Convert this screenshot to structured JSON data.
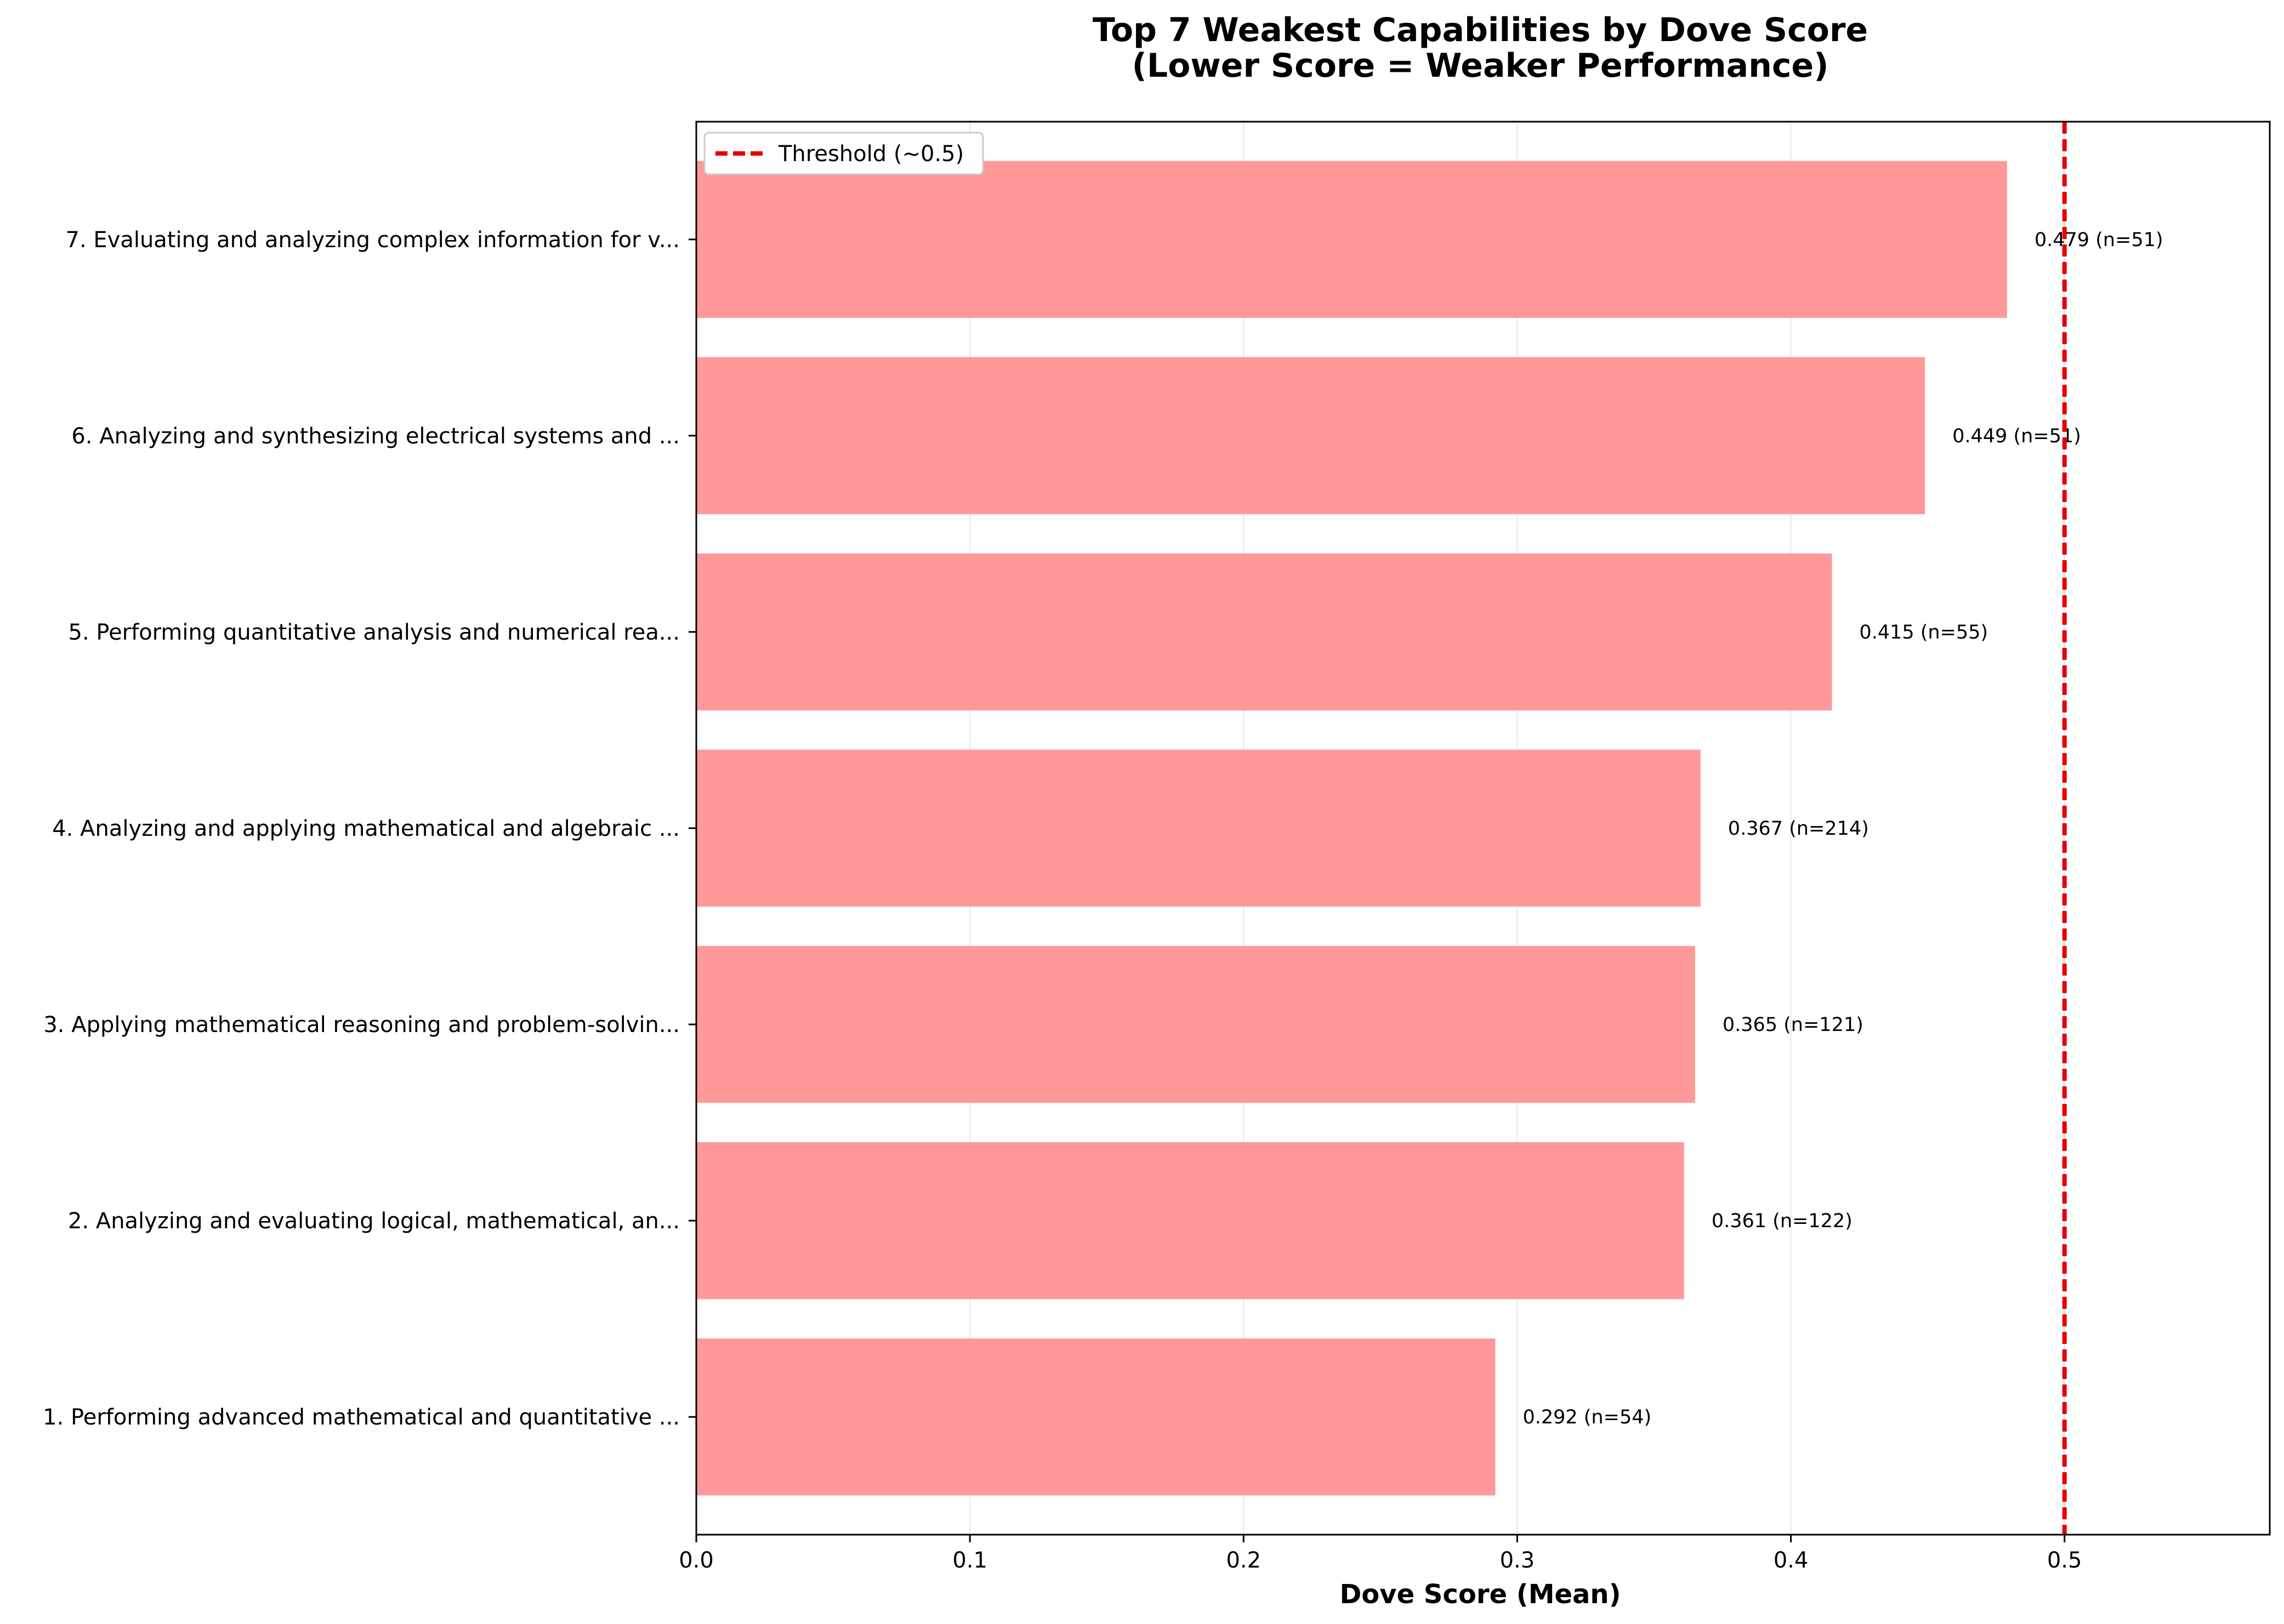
{
  "chart_data": {
    "type": "bar",
    "orientation": "horizontal",
    "title": "Top 7 Weakest Capabilities by Dove Score",
    "subtitle": "(Lower Score = Weaker Performance)",
    "xlabel": "Dove Score (Mean)",
    "ylabel": "",
    "xlim": [
      0,
      0.575
    ],
    "xticks": [
      0.0,
      0.1,
      0.2,
      0.3,
      0.4,
      0.5
    ],
    "xtick_labels": [
      "0.0",
      "0.1",
      "0.2",
      "0.3",
      "0.4",
      "0.5"
    ],
    "grid": "vertical",
    "categories": [
      "1. Performing advanced mathematical and quantitative ...",
      "2. Analyzing and evaluating logical, mathematical, an...",
      "3. Applying mathematical reasoning and problem-solvin...",
      "4. Analyzing and applying mathematical and algebraic ...",
      "5. Performing quantitative analysis and numerical rea...",
      "6. Analyzing and synthesizing electrical systems and ...",
      "7. Evaluating and analyzing complex information for v..."
    ],
    "values": [
      0.292,
      0.361,
      0.365,
      0.367,
      0.415,
      0.449,
      0.479
    ],
    "n": [
      54,
      122,
      121,
      214,
      55,
      51,
      51
    ],
    "data_labels": [
      "0.292 (n=54)",
      "0.361 (n=122)",
      "0.365 (n=121)",
      "0.367 (n=214)",
      "0.415 (n=55)",
      "0.449 (n=51)",
      "0.479 (n=51)"
    ],
    "threshold": {
      "value": 0.5,
      "label": "Threshold (~0.5)",
      "color": "#e60000",
      "style": "dashed"
    },
    "legend_position": "top-left",
    "colors": {
      "bar": "#ff9999",
      "threshold": "#e60000",
      "grid": "#e6e6e6"
    }
  }
}
